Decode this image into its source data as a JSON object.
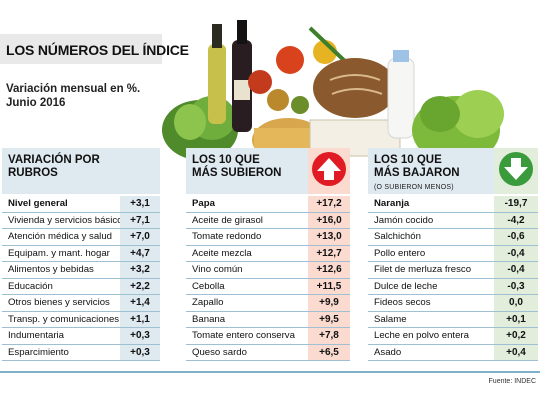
{
  "header": {
    "title": "LOS NÚMEROS DEL ÍNDICE",
    "subtitle_line1": "Variación mensual en %.",
    "subtitle_line2": "Junio 2016"
  },
  "rubros": {
    "heading_line1": "VARIACIÓN POR",
    "heading_line2": "RUBROS",
    "rows": [
      {
        "label": "Nivel general",
        "value": "+3,1"
      },
      {
        "label": "Vivienda y servicios básicos",
        "value": "+7,1"
      },
      {
        "label": "Atención médica y salud",
        "value": "+7,0"
      },
      {
        "label": "Equipam. y mant. hogar",
        "value": "+4,7"
      },
      {
        "label": "Alimentos y bebidas",
        "value": "+3,2"
      },
      {
        "label": "Educación",
        "value": "+2,2"
      },
      {
        "label": "Otros bienes y servicios",
        "value": "+1,4"
      },
      {
        "label": "Transp. y comunicaciones",
        "value": "+1,1"
      },
      {
        "label": "Indumentaria",
        "value": "+0,3"
      },
      {
        "label": "Esparcimiento",
        "value": "+0,3"
      }
    ]
  },
  "subieron": {
    "heading_line1": "LOS 10 QUE",
    "heading_line2": "MÁS SUBIERON",
    "badge_icon": "arrow-up-icon",
    "badge_color": "#e01b23",
    "rows": [
      {
        "label": "Papa",
        "value": "+17,2"
      },
      {
        "label": "Aceite de girasol",
        "value": "+16,0"
      },
      {
        "label": "Tomate redondo",
        "value": "+13,0"
      },
      {
        "label": "Aceite mezcla",
        "value": "+12,7"
      },
      {
        "label": "Vino común",
        "value": "+12,6"
      },
      {
        "label": "Cebolla",
        "value": "+11,5"
      },
      {
        "label": "Zapallo",
        "value": "+9,9"
      },
      {
        "label": "Banana",
        "value": "+9,5"
      },
      {
        "label": "Tomate entero conserva",
        "value": "+7,8"
      },
      {
        "label": "Queso sardo",
        "value": "+6,5"
      }
    ]
  },
  "bajaron": {
    "heading_line1": "LOS 10 QUE",
    "heading_line2": "MÁS BAJARON",
    "note": "(O SUBIERON MENOS)",
    "badge_icon": "arrow-down-icon",
    "badge_color": "#3a9b3c",
    "rows": [
      {
        "label": "Naranja",
        "value": "-19,7"
      },
      {
        "label": "Jamón cocido",
        "value": "-4,2"
      },
      {
        "label": "Salchichón",
        "value": "-0,6"
      },
      {
        "label": "Pollo entero",
        "value": "-0,4"
      },
      {
        "label": "Filet de merluza fresco",
        "value": "-0,4"
      },
      {
        "label": "Dulce de leche",
        "value": "-0,3"
      },
      {
        "label": "Fideos secos",
        "value": "0,0"
      },
      {
        "label": "Salame",
        "value": "+0,1"
      },
      {
        "label": "Leche en polvo entera",
        "value": "+0,2"
      },
      {
        "label": "Asado",
        "value": "+0,4"
      }
    ]
  },
  "footer": {
    "source": "Fuente: INDEC"
  }
}
